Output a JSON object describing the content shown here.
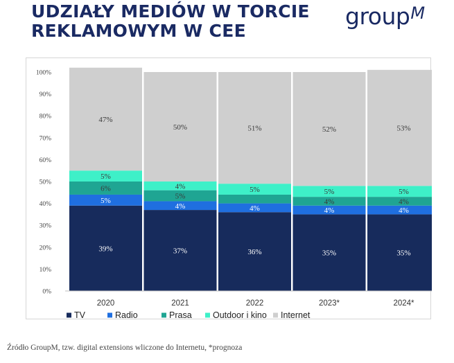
{
  "header": {
    "title_line1": "UDZIAŁY MEDIÓW W TORCIE",
    "title_line2": "REKLAMOWYM W CEE",
    "logo_text": "group",
    "logo_suffix": "M"
  },
  "source_note": "Źródło GroupM, tzw. digital extensions wliczone do Internetu, *prognoza",
  "chart_data": {
    "type": "bar",
    "stacked": true,
    "normalized": true,
    "categories": [
      "2020",
      "2021",
      "2022",
      "2023*",
      "2024*"
    ],
    "series": [
      {
        "name": "TV",
        "color": "#172b5c",
        "values": [
          39,
          37,
          36,
          35,
          35
        ],
        "labels": [
          "39%",
          "37%",
          "36%",
          "35%",
          "35%"
        ]
      },
      {
        "name": "Radio",
        "color": "#1f6fe0",
        "values": [
          5,
          4,
          4,
          4,
          4
        ],
        "labels": [
          "5%",
          "4%",
          "4%",
          "4%",
          "4%"
        ]
      },
      {
        "name": "Prasa",
        "color": "#1fa593",
        "values": [
          6,
          5,
          4,
          4,
          4
        ],
        "labels": [
          "6%",
          "5%",
          "",
          "4%",
          "4%"
        ]
      },
      {
        "name": "Outdoor i kino",
        "color": "#3ef0c8",
        "values": [
          5,
          4,
          5,
          5,
          5
        ],
        "labels": [
          "5%",
          "4%",
          "5%",
          "5%",
          "5%"
        ]
      },
      {
        "name": "Internet",
        "color": "#cfcfcf",
        "values": [
          47,
          50,
          51,
          52,
          53
        ],
        "labels": [
          "47%",
          "50%",
          "51%",
          "52%",
          "53%"
        ]
      }
    ],
    "yticks": [
      "0%",
      "10%",
      "20%",
      "30%",
      "40%",
      "50%",
      "60%",
      "70%",
      "80%",
      "90%",
      "100%"
    ],
    "ylim": [
      0,
      100
    ],
    "grid": false,
    "legend_position": "bottom",
    "title": "",
    "xlabel": "",
    "ylabel": ""
  }
}
